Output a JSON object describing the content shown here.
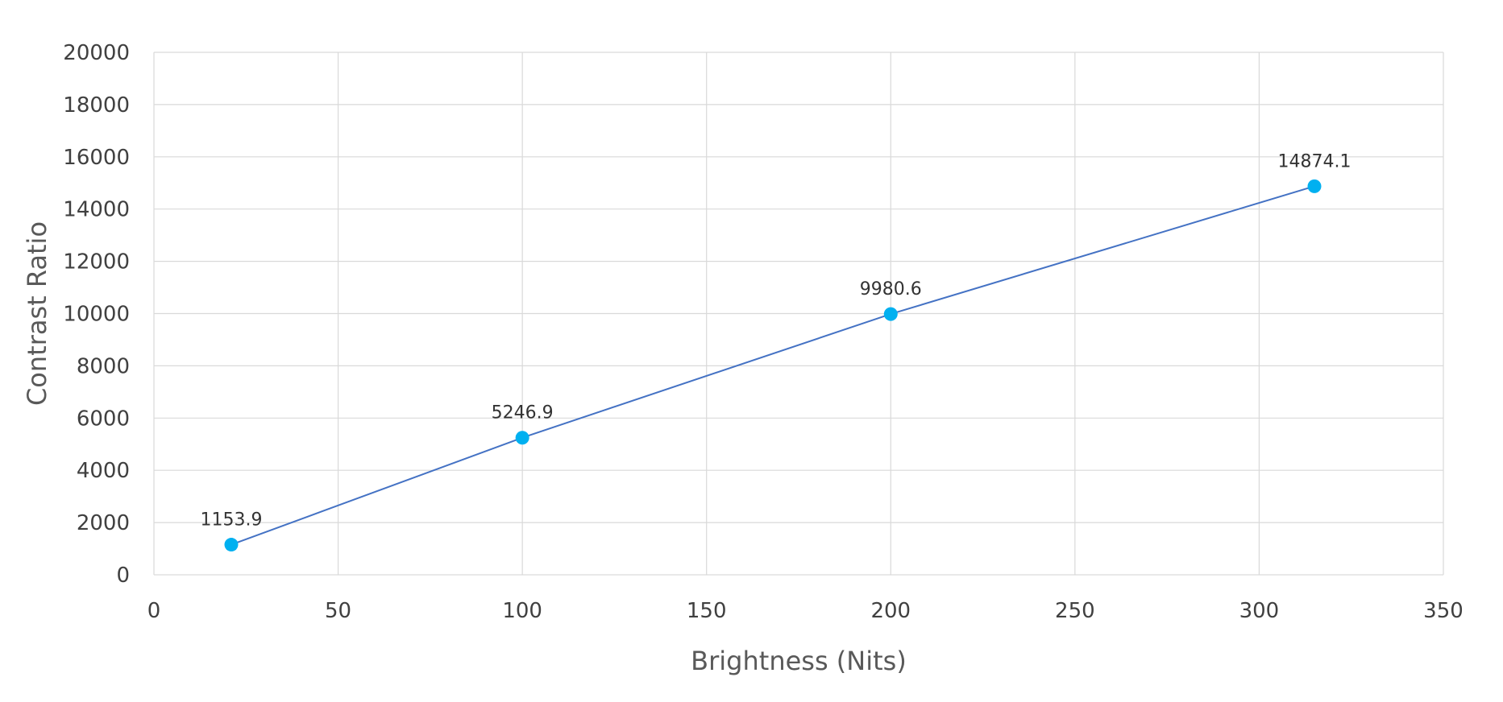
{
  "chart_data": {
    "type": "line",
    "title": "",
    "xlabel": "Brightness (Nits)",
    "ylabel": "Contrast Ratio",
    "xlim": [
      0,
      350
    ],
    "ylim": [
      0,
      20000
    ],
    "x_ticks": [
      0,
      50,
      100,
      150,
      200,
      250,
      300,
      350
    ],
    "y_ticks": [
      0,
      2000,
      4000,
      6000,
      8000,
      10000,
      12000,
      14000,
      16000,
      18000,
      20000
    ],
    "grid": true,
    "legend": "none",
    "series": [
      {
        "x": [
          21,
          100,
          200,
          315
        ],
        "y": [
          1153.9,
          5246.9,
          9980.6,
          14874.1
        ],
        "labels": [
          "1153.9",
          "5246.9",
          "9980.6",
          "14874.1"
        ]
      }
    ],
    "colors": {
      "line": "#4472C4",
      "marker": "#00B0F0",
      "grid": "#D9D9D9"
    }
  }
}
